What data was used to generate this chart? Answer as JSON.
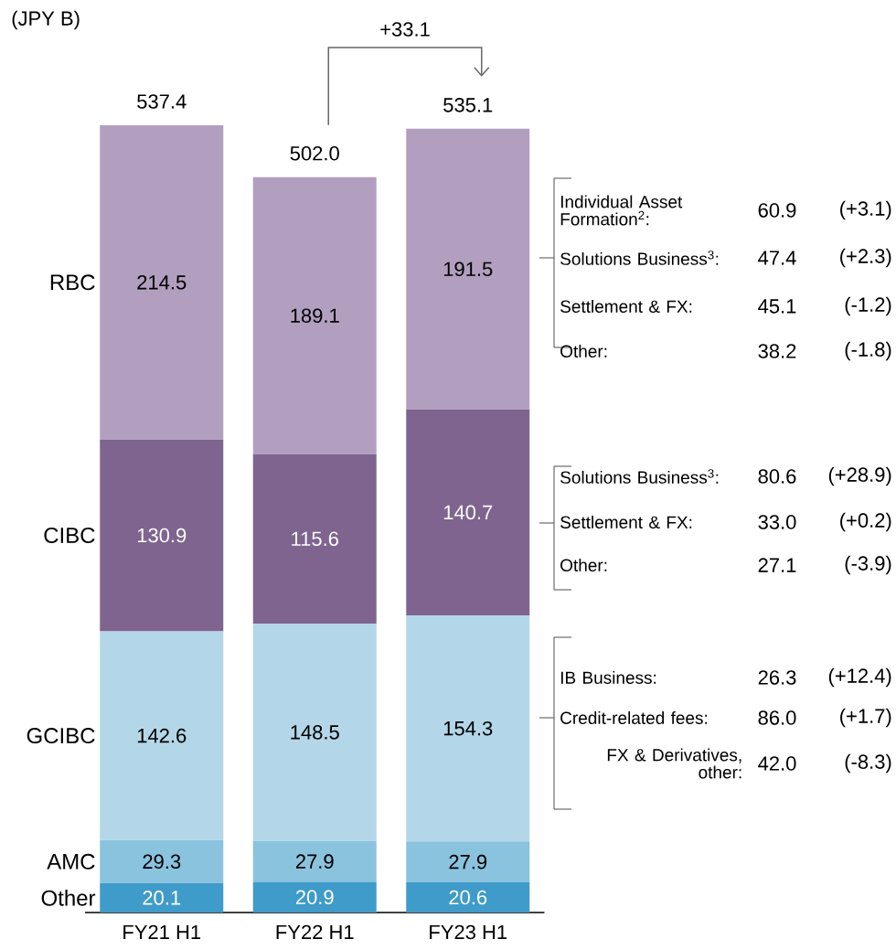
{
  "chart_data": {
    "type": "bar",
    "stacked": true,
    "data_labels": true,
    "categories": [
      "FY21 H1",
      "FY22 H1",
      "FY23 H1"
    ],
    "series": [
      {
        "name": "Other",
        "color": "#3f9bc9",
        "values": [
          20.1,
          20.9,
          20.6
        ]
      },
      {
        "name": "AMC",
        "color": "#8ac3de",
        "values": [
          29.3,
          27.9,
          27.9
        ]
      },
      {
        "name": "GCIBC",
        "color": "#b3d7e8",
        "values": [
          142.6,
          148.5,
          154.3
        ]
      },
      {
        "name": "CIBC",
        "color": "#7f6490",
        "values": [
          130.9,
          115.6,
          140.7
        ]
      },
      {
        "name": "RBC",
        "color": "#b29fbf",
        "values": [
          214.5,
          189.1,
          191.5
        ]
      }
    ],
    "totals": [
      "537.4",
      "502.0",
      "535.1"
    ],
    "annotations": [
      "(JPY B)",
      "+33.1",
      "Individual Asset Formation$^{2}$:",
      "60.9",
      "(+3.1)",
      "Solutions Business$^{3}$:",
      "47.4",
      "(+2.3)",
      "Settlement & FX:",
      "45.1",
      "(-1.2)",
      "Other:",
      "38.2",
      "(-1.8)",
      "Solutions Business$^{3}$:",
      "80.6",
      "(+28.9)",
      "Settlement & FX:",
      "33.0",
      "(+0.2)",
      "Other:",
      "27.1",
      "(-3.9)",
      "IB Business:",
      "26.3",
      "(+12.4)",
      "Credit-related fees:",
      "86.0",
      "(+1.7)",
      "FX & Derivatives, other:",
      "42.0",
      "(-8.3)"
    ]
  }
}
